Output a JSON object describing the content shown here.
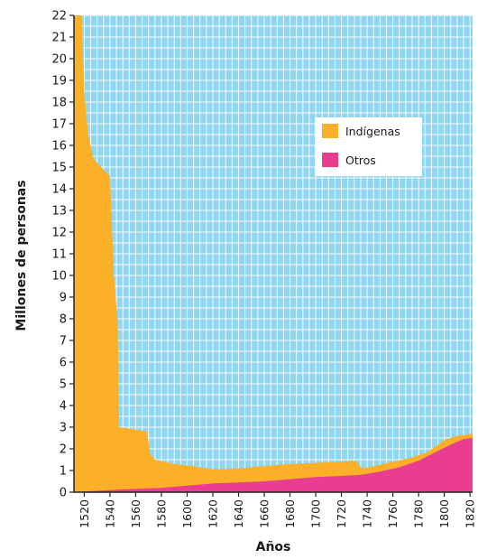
{
  "chart_data": {
    "type": "area",
    "title": "",
    "xlabel": "Años",
    "ylabel": "Millones de personas",
    "xlim": [
      1512,
      1822
    ],
    "ylim": [
      0,
      22
    ],
    "grid": true,
    "legend_position": "right",
    "plot_background": "#8fd6f2",
    "x_ticks": [
      1520,
      1540,
      1560,
      1580,
      1600,
      1620,
      1640,
      1660,
      1680,
      1700,
      1720,
      1740,
      1760,
      1780,
      1800,
      1820
    ],
    "y_ticks": [
      0,
      1,
      2,
      3,
      4,
      5,
      6,
      7,
      8,
      9,
      10,
      11,
      12,
      13,
      14,
      15,
      16,
      17,
      18,
      19,
      20,
      21,
      22
    ],
    "series": [
      {
        "name": "Indígenas",
        "color": "#fbb027",
        "points": [
          [
            1512,
            22.0
          ],
          [
            1518,
            22.0
          ],
          [
            1520,
            18.5
          ],
          [
            1523,
            16.5
          ],
          [
            1527,
            15.4
          ],
          [
            1533,
            15.0
          ],
          [
            1540,
            14.6
          ],
          [
            1543,
            10.0
          ],
          [
            1546,
            7.9
          ],
          [
            1547,
            3.0
          ],
          [
            1569,
            2.8
          ],
          [
            1571,
            1.8
          ],
          [
            1575,
            1.5
          ],
          [
            1590,
            1.3
          ],
          [
            1605,
            1.2
          ],
          [
            1620,
            1.05
          ],
          [
            1640,
            1.1
          ],
          [
            1660,
            1.2
          ],
          [
            1680,
            1.3
          ],
          [
            1700,
            1.35
          ],
          [
            1731,
            1.45
          ],
          [
            1736,
            1.1
          ],
          [
            1745,
            1.2
          ],
          [
            1760,
            1.4
          ],
          [
            1775,
            1.6
          ],
          [
            1787,
            1.85
          ],
          [
            1800,
            2.4
          ],
          [
            1810,
            2.6
          ],
          [
            1822,
            2.7
          ]
        ]
      },
      {
        "name": "Otros",
        "color": "#e93d8f",
        "points": [
          [
            1512,
            0.0
          ],
          [
            1540,
            0.1
          ],
          [
            1560,
            0.15
          ],
          [
            1580,
            0.2
          ],
          [
            1600,
            0.3
          ],
          [
            1620,
            0.4
          ],
          [
            1640,
            0.45
          ],
          [
            1660,
            0.5
          ],
          [
            1680,
            0.6
          ],
          [
            1700,
            0.7
          ],
          [
            1720,
            0.75
          ],
          [
            1735,
            0.8
          ],
          [
            1750,
            0.95
          ],
          [
            1765,
            1.15
          ],
          [
            1780,
            1.45
          ],
          [
            1795,
            1.9
          ],
          [
            1805,
            2.2
          ],
          [
            1815,
            2.45
          ],
          [
            1822,
            2.5
          ]
        ]
      }
    ]
  }
}
